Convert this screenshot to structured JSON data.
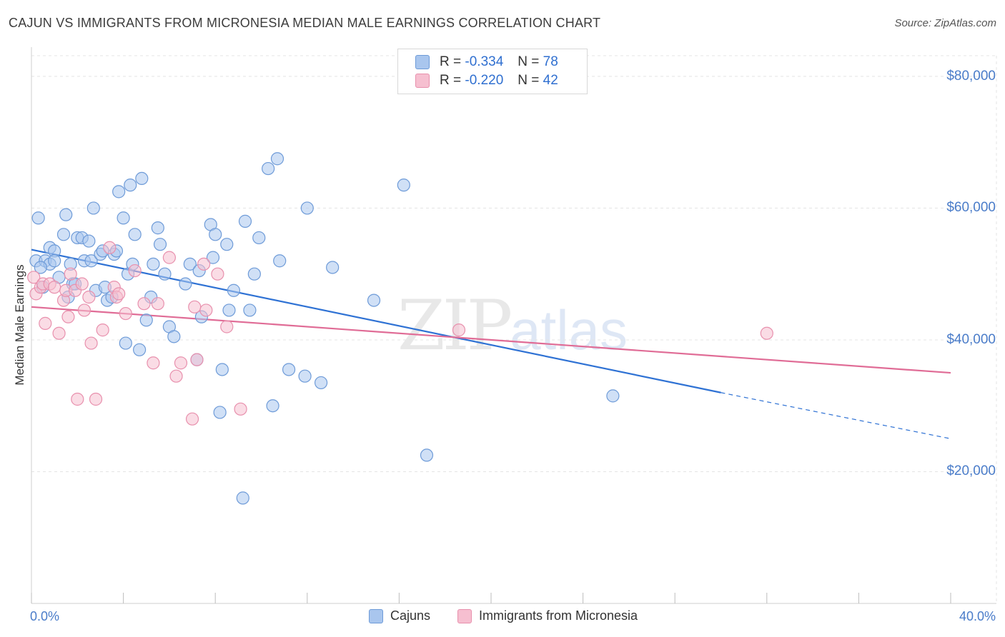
{
  "title": "CAJUN VS IMMIGRANTS FROM MICRONESIA MEDIAN MALE EARNINGS CORRELATION CHART",
  "source": "Source: ZipAtlas.com",
  "watermark": {
    "zip": "ZIP",
    "atlas": "atlas"
  },
  "legend": {
    "rows": [
      {
        "r_label": "R =",
        "r_value": "-0.334",
        "n_label": "N =",
        "n_value": "78"
      },
      {
        "r_label": "R =",
        "r_value": "-0.220",
        "n_label": "N =",
        "n_value": "42"
      }
    ]
  },
  "bottom_legend": {
    "series1": "Cajuns",
    "series2": "Immigrants from Micronesia"
  },
  "colors": {
    "blue_fill": "#a9c6ee",
    "blue_stroke": "#6e9bd8",
    "blue_line": "#2f72d4",
    "pink_fill": "#f6bfd0",
    "pink_stroke": "#e890ad",
    "pink_line": "#e06c96",
    "grid": "#e4e4e4",
    "axis_label": "#4a7cc9"
  },
  "chart_data": {
    "type": "scatter",
    "title": "CAJUN VS IMMIGRANTS FROM MICRONESIA MEDIAN MALE EARNINGS CORRELATION CHART",
    "xlabel": "",
    "ylabel": "Median Male Earnings",
    "xlim": [
      0,
      40
    ],
    "ylim": [
      0,
      84000
    ],
    "x_tick_labels": [
      "0.0%",
      "40.0%"
    ],
    "y_ticks": [
      20000,
      40000,
      60000,
      80000
    ],
    "y_tick_labels": [
      "$20,000",
      "$40,000",
      "$60,000",
      "$80,000"
    ],
    "series": [
      {
        "name": "Cajuns",
        "color": "#6e9bd8",
        "trend": {
          "x0": 0,
          "y0": 53700,
          "x1": 30,
          "y1": 32000,
          "dash_to_x": 40,
          "dash_to_y": 25000
        },
        "points": [
          [
            0.2,
            52000
          ],
          [
            0.3,
            58500
          ],
          [
            0.5,
            48000
          ],
          [
            0.6,
            52000
          ],
          [
            0.8,
            51500
          ],
          [
            0.8,
            54000
          ],
          [
            1.0,
            53500
          ],
          [
            1.0,
            52000
          ],
          [
            1.2,
            49500
          ],
          [
            1.4,
            56000
          ],
          [
            1.5,
            59000
          ],
          [
            1.6,
            46500
          ],
          [
            1.7,
            51500
          ],
          [
            1.8,
            48500
          ],
          [
            2.0,
            55500
          ],
          [
            2.2,
            55500
          ],
          [
            2.3,
            52000
          ],
          [
            2.5,
            55000
          ],
          [
            2.6,
            52000
          ],
          [
            2.7,
            60000
          ],
          [
            2.8,
            47500
          ],
          [
            3.0,
            53000
          ],
          [
            3.1,
            53500
          ],
          [
            3.2,
            48000
          ],
          [
            3.3,
            46000
          ],
          [
            3.5,
            46500
          ],
          [
            3.6,
            53000
          ],
          [
            3.7,
            53500
          ],
          [
            3.8,
            62500
          ],
          [
            4.0,
            58500
          ],
          [
            4.1,
            39500
          ],
          [
            4.2,
            50000
          ],
          [
            4.3,
            63500
          ],
          [
            4.4,
            51500
          ],
          [
            4.5,
            56000
          ],
          [
            4.7,
            38500
          ],
          [
            4.8,
            64500
          ],
          [
            5.0,
            43000
          ],
          [
            5.2,
            46500
          ],
          [
            5.3,
            51500
          ],
          [
            5.5,
            57000
          ],
          [
            5.6,
            54500
          ],
          [
            5.8,
            50000
          ],
          [
            6.0,
            42000
          ],
          [
            6.2,
            40500
          ],
          [
            6.7,
            48500
          ],
          [
            6.9,
            51500
          ],
          [
            7.2,
            37000
          ],
          [
            7.3,
            50500
          ],
          [
            7.4,
            43500
          ],
          [
            7.8,
            57500
          ],
          [
            7.9,
            52500
          ],
          [
            8.0,
            56000
          ],
          [
            8.2,
            29000
          ],
          [
            8.3,
            35500
          ],
          [
            8.5,
            54500
          ],
          [
            8.6,
            44500
          ],
          [
            8.8,
            47500
          ],
          [
            9.2,
            16000
          ],
          [
            9.3,
            58000
          ],
          [
            9.5,
            44500
          ],
          [
            9.7,
            50000
          ],
          [
            9.9,
            55500
          ],
          [
            10.3,
            66000
          ],
          [
            10.5,
            30000
          ],
          [
            10.7,
            67500
          ],
          [
            10.8,
            52000
          ],
          [
            11.2,
            35500
          ],
          [
            11.9,
            34500
          ],
          [
            12.0,
            60000
          ],
          [
            12.6,
            33500
          ],
          [
            13.1,
            51000
          ],
          [
            14.9,
            46000
          ],
          [
            16.2,
            63500
          ],
          [
            17.2,
            22500
          ],
          [
            25.3,
            31500
          ],
          [
            0.4,
            51000
          ],
          [
            1.9,
            48500
          ]
        ]
      },
      {
        "name": "Immigrants from Micronesia",
        "color": "#e890ad",
        "trend": {
          "x0": 0,
          "y0": 45000,
          "x1": 40,
          "y1": 35000
        },
        "points": [
          [
            0.1,
            49500
          ],
          [
            0.2,
            47000
          ],
          [
            0.4,
            48000
          ],
          [
            0.5,
            48500
          ],
          [
            0.6,
            42500
          ],
          [
            0.8,
            48500
          ],
          [
            1.0,
            48000
          ],
          [
            1.2,
            41000
          ],
          [
            1.4,
            46000
          ],
          [
            1.5,
            47500
          ],
          [
            1.6,
            43500
          ],
          [
            1.7,
            50000
          ],
          [
            1.9,
            47500
          ],
          [
            2.0,
            31000
          ],
          [
            2.2,
            48500
          ],
          [
            2.3,
            44500
          ],
          [
            2.5,
            46500
          ],
          [
            2.6,
            39500
          ],
          [
            2.8,
            31000
          ],
          [
            3.1,
            41500
          ],
          [
            3.4,
            54000
          ],
          [
            3.6,
            48000
          ],
          [
            3.7,
            46500
          ],
          [
            3.8,
            47000
          ],
          [
            4.1,
            44000
          ],
          [
            4.5,
            50500
          ],
          [
            4.9,
            45500
          ],
          [
            5.3,
            36500
          ],
          [
            5.5,
            45500
          ],
          [
            6.0,
            52500
          ],
          [
            6.3,
            34500
          ],
          [
            6.5,
            36500
          ],
          [
            7.0,
            28000
          ],
          [
            7.1,
            45000
          ],
          [
            7.2,
            37000
          ],
          [
            7.5,
            51500
          ],
          [
            7.6,
            44500
          ],
          [
            8.1,
            50000
          ],
          [
            8.5,
            42000
          ],
          [
            9.1,
            29500
          ],
          [
            18.6,
            41500
          ],
          [
            32.0,
            41000
          ]
        ]
      }
    ]
  }
}
